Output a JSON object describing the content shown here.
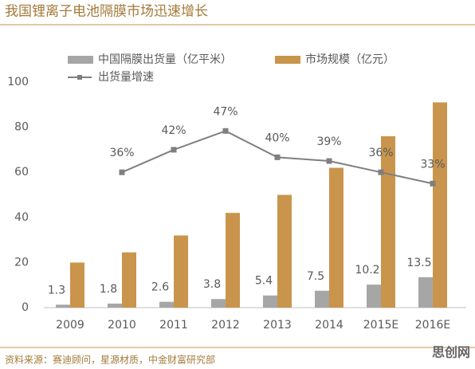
{
  "chart_data": {
    "type": "bar",
    "title": "我国锂离子电池隔膜市场迅速增长",
    "categories": [
      "2009",
      "2010",
      "2011",
      "2012",
      "2013",
      "2014",
      "2015E",
      "2016E"
    ],
    "series": [
      {
        "name": "中国隔膜出货量（亿平米）",
        "color": "#a6a6a6",
        "values": [
          1.3,
          1.8,
          2.6,
          3.8,
          5.4,
          7.5,
          10.2,
          13.5
        ],
        "show_labels": true
      },
      {
        "name": "市场规模（亿元）",
        "color": "#c9954c",
        "values": [
          20,
          24.5,
          32,
          42,
          50,
          62,
          76,
          91
        ]
      },
      {
        "name": "出货量增速",
        "color": "#7f7f7f",
        "type": "line",
        "axis": "y2",
        "values": [
          null,
          36,
          42,
          47,
          40,
          39,
          36,
          33
        ],
        "value_labels": [
          null,
          "36%",
          "42%",
          "47%",
          "40%",
          "39%",
          "36%",
          "33%"
        ]
      }
    ],
    "ylim": [
      0,
      100
    ],
    "yticks": [
      0,
      20,
      40,
      60,
      80,
      100
    ],
    "y2lim": [
      0,
      60
    ],
    "source": "资料来源：赛迪顾问，星源材质，中金财富研究部",
    "watermark": "思创网"
  }
}
